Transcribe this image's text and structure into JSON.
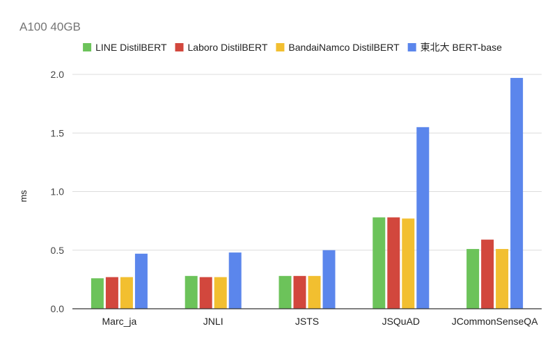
{
  "chart_data": {
    "type": "bar",
    "title": "A100 40GB",
    "ylabel": "ms",
    "xlabel": "",
    "ylim": [
      0,
      2.0
    ],
    "yticks": [
      "0.0",
      "0.5",
      "1.0",
      "1.5",
      "2.0"
    ],
    "ytick_values": [
      0,
      0.5,
      1.0,
      1.5,
      2.0
    ],
    "grid": true,
    "legend_position": "top",
    "categories": [
      "Marc_ja",
      "JNLI",
      "JSTS",
      "JSQuAD",
      "JCommonSenseQA"
    ],
    "series": [
      {
        "name": "LINE DistilBERT",
        "color": "#6cc35a",
        "values": [
          0.26,
          0.28,
          0.28,
          0.78,
          0.51
        ]
      },
      {
        "name": "Laboro DistilBERT",
        "color": "#d2473d",
        "values": [
          0.27,
          0.27,
          0.28,
          0.78,
          0.59
        ]
      },
      {
        "name": "BandaiNamco DistilBERT",
        "color": "#f2bf30",
        "values": [
          0.27,
          0.27,
          0.28,
          0.77,
          0.51
        ]
      },
      {
        "name": "東北大 BERT-base",
        "color": "#5b86ec",
        "values": [
          0.47,
          0.48,
          0.5,
          1.55,
          1.97
        ]
      }
    ]
  }
}
